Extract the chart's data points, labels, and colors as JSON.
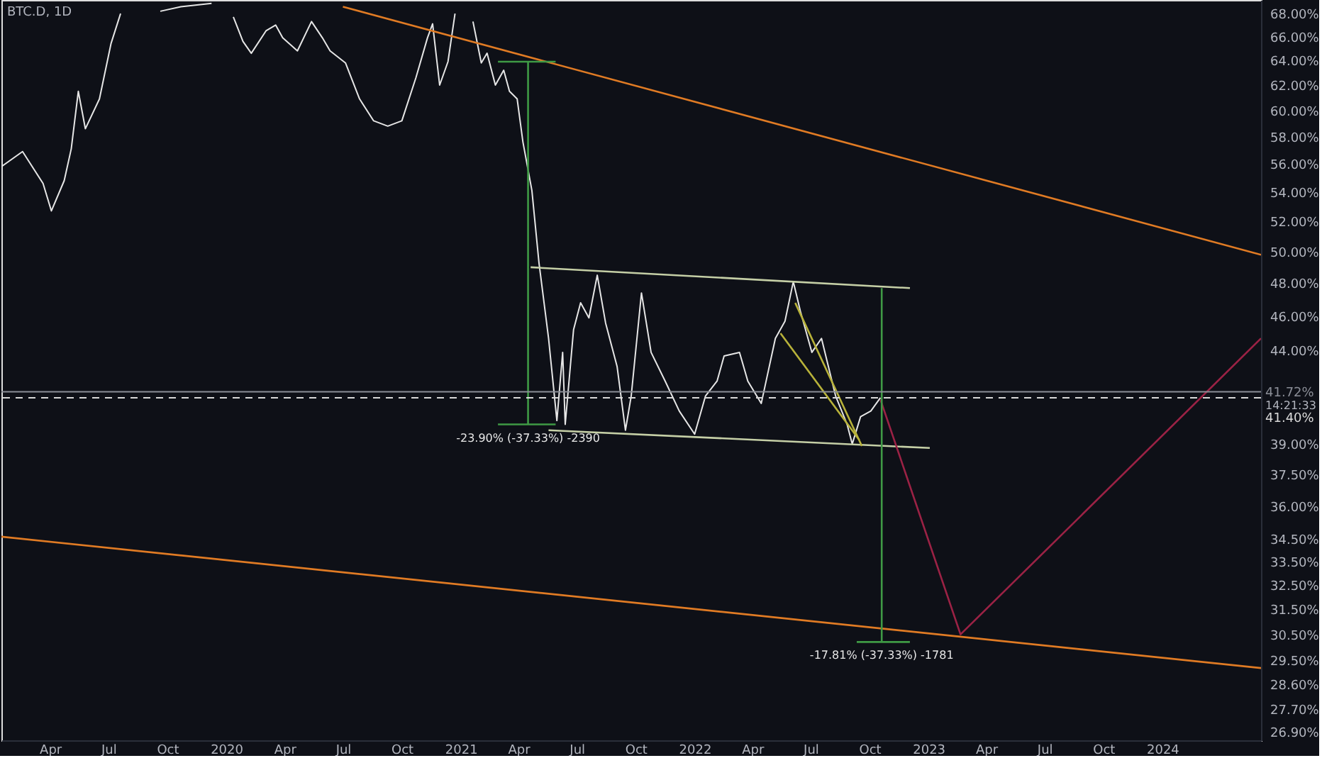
{
  "chart_data": {
    "type": "line",
    "title": "BTC.D, 1D",
    "xlim": [
      "2019-01-15",
      "2024-06-03"
    ],
    "xticks": [
      {
        "value": "2019-04-01",
        "label": "Apr"
      },
      {
        "value": "2019-07-01",
        "label": "Jul"
      },
      {
        "value": "2019-10-01",
        "label": "Oct"
      },
      {
        "value": "2020-01-01",
        "label": "2020"
      },
      {
        "value": "2020-04-01",
        "label": "Apr"
      },
      {
        "value": "2020-07-01",
        "label": "Jul"
      },
      {
        "value": "2020-10-01",
        "label": "Oct"
      },
      {
        "value": "2021-01-01",
        "label": "2021"
      },
      {
        "value": "2021-04-01",
        "label": "Apr"
      },
      {
        "value": "2021-07-01",
        "label": "Jul"
      },
      {
        "value": "2021-10-01",
        "label": "Oct"
      },
      {
        "value": "2022-01-01",
        "label": "2022"
      },
      {
        "value": "2022-04-01",
        "label": "Apr"
      },
      {
        "value": "2022-07-01",
        "label": "Jul"
      },
      {
        "value": "2022-10-01",
        "label": "Oct"
      },
      {
        "value": "2023-01-01",
        "label": "2023"
      },
      {
        "value": "2023-04-01",
        "label": "Apr"
      },
      {
        "value": "2023-07-01",
        "label": "Jul"
      },
      {
        "value": "2023-10-01",
        "label": "Oct"
      },
      {
        "value": "2024-01-01",
        "label": "2024"
      }
    ],
    "ylim": [
      26.6,
      69.2
    ],
    "log": true,
    "yticks": [
      {
        "value": 68,
        "label": "68.00%"
      },
      {
        "value": 66,
        "label": "66.00%"
      },
      {
        "value": 64,
        "label": "64.00%"
      },
      {
        "value": 62,
        "label": "62.00%"
      },
      {
        "value": 60,
        "label": "60.00%"
      },
      {
        "value": 58,
        "label": "58.00%"
      },
      {
        "value": 56,
        "label": "56.00%"
      },
      {
        "value": 54,
        "label": "54.00%"
      },
      {
        "value": 52,
        "label": "52.00%"
      },
      {
        "value": 50,
        "label": "50.00%"
      },
      {
        "value": 48,
        "label": "48.00%"
      },
      {
        "value": 46,
        "label": "46.00%"
      },
      {
        "value": 44,
        "label": "44.00%"
      },
      {
        "value": 39,
        "label": "39.00%"
      },
      {
        "value": 37.5,
        "label": "37.50%"
      },
      {
        "value": 36,
        "label": "36.00%"
      },
      {
        "value": 34.5,
        "label": "34.50%"
      },
      {
        "value": 33.5,
        "label": "33.50%"
      },
      {
        "value": 32.5,
        "label": "32.50%"
      },
      {
        "value": 31.5,
        "label": "31.50%"
      },
      {
        "value": 30.5,
        "label": "30.50%"
      },
      {
        "value": 29.5,
        "label": "29.50%"
      },
      {
        "value": 28.6,
        "label": "28.60%"
      },
      {
        "value": 27.7,
        "label": "27.70%"
      },
      {
        "value": 26.9,
        "label": "26.90%"
      }
    ],
    "grid": false,
    "legend": false,
    "marker": "none",
    "line_style": "solid",
    "series": [
      {
        "color": "#e6e6e6",
        "x": [
          "2019-01-15",
          "2019-02-17",
          "2019-03-21",
          "2019-04-03",
          "2019-04-23",
          "2019-05-04",
          "2019-05-15",
          "2019-05-26",
          "2019-06-17",
          "2019-07-05",
          "2019-07-20",
          "2019-07-27",
          "2019-09-20",
          "2019-10-22",
          "2019-12-09",
          "2020-01-01",
          "2020-01-12",
          "2020-01-27",
          "2020-02-09",
          "2020-03-03",
          "2020-03-18",
          "2020-03-29",
          "2020-04-21",
          "2020-05-13",
          "2020-05-30",
          "2020-06-11",
          "2020-07-05",
          "2020-07-27",
          "2020-08-18",
          "2020-09-09",
          "2020-10-01",
          "2020-10-23",
          "2020-11-10",
          "2020-11-18",
          "2020-11-29",
          "2020-12-12",
          "2020-12-23",
          "2021-01-01",
          "2021-01-12",
          "2021-01-20",
          "2021-02-02",
          "2021-02-11",
          "2021-02-24",
          "2021-03-09",
          "2021-03-18",
          "2021-03-30",
          "2021-04-08",
          "2021-04-22",
          "2021-05-03",
          "2021-05-18",
          "2021-05-31",
          "2021-06-09",
          "2021-06-13",
          "2021-06-26",
          "2021-07-07",
          "2021-07-20",
          "2021-08-02",
          "2021-08-15",
          "2021-09-02",
          "2021-09-15",
          "2021-09-24",
          "2021-10-10",
          "2021-10-25",
          "2021-11-16",
          "2021-12-08",
          "2022-01-01",
          "2022-01-18",
          "2022-02-05",
          "2022-02-16",
          "2022-03-12",
          "2022-03-25",
          "2022-04-15",
          "2022-05-07",
          "2022-05-22",
          "2022-06-04",
          "2022-06-15",
          "2022-07-03",
          "2022-07-18",
          "2022-08-09",
          "2022-08-27",
          "2022-09-04",
          "2022-09-17",
          "2022-10-03",
          "2022-10-18"
        ],
        "values": [
          55.8,
          56.9,
          54.6,
          52.7,
          54.8,
          57.1,
          61.5,
          58.6,
          60.9,
          65.4,
          68,
          null,
          68.2,
          68.6,
          68.9,
          null,
          67.7,
          65.6,
          64.6,
          66.5,
          67,
          65.9,
          64.8,
          67.3,
          65.9,
          64.8,
          63.8,
          60.9,
          59.2,
          58.8,
          59.2,
          62.6,
          65.9,
          67.1,
          62,
          63.9,
          68,
          null,
          null,
          67.3,
          63.8,
          64.6,
          62,
          63.2,
          61.5,
          60.9,
          57.6,
          54.1,
          49.3,
          44.7,
          40.2,
          43.9,
          40,
          45.2,
          46.8,
          45.9,
          48.5,
          45.6,
          43.1,
          39.7,
          41.5,
          47.4,
          43.9,
          42.3,
          40.7,
          39.5,
          41.5,
          42.3,
          43.7,
          43.9,
          42.3,
          41.1,
          44.7,
          45.7,
          48.1,
          46.3,
          43.9,
          44.7,
          41.5,
          40,
          39,
          40.4,
          40.7,
          41.4
        ]
      },
      {
        "type": "line",
        "color": "#e07b24",
        "x": [
          "2020-07-01",
          "2024-06-03"
        ],
        "values": [
          68.6,
          49.8
        ]
      },
      {
        "type": "line",
        "color": "#e07b24",
        "x": [
          "2019-01-15",
          "2024-06-03"
        ],
        "values": [
          34.6,
          29.2
        ]
      },
      {
        "type": "line",
        "color": "#c5cfa6",
        "x": [
          "2021-04-20",
          "2022-12-03"
        ],
        "values": [
          49,
          47.7
        ]
      },
      {
        "type": "line",
        "color": "#c5cfa6",
        "x": [
          "2021-05-18",
          "2023-01-03"
        ],
        "values": [
          39.7,
          38.8
        ]
      },
      {
        "type": "line",
        "color": "#b8b23a",
        "x": [
          "2022-06-07",
          "2022-09-19"
        ],
        "values": [
          46.8,
          38.9
        ]
      },
      {
        "type": "line",
        "color": "#b8b23a",
        "x": [
          "2022-05-15",
          "2022-09-15"
        ],
        "values": [
          45,
          39.2
        ]
      },
      {
        "type": "line",
        "color": "#9b2245",
        "x": [
          "2022-10-18",
          "2023-02-20",
          "2024-06-03"
        ],
        "values": [
          41.3,
          30.5,
          44.7
        ]
      },
      {
        "type": "line",
        "color": "#3f9a45",
        "x": [
          "2021-04-16",
          "2021-04-16"
        ],
        "values": [
          63.9,
          40
        ]
      },
      {
        "type": "line",
        "color": "#3f9a45",
        "x": [
          "2021-02-28",
          "2021-05-29"
        ],
        "values": [
          63.9,
          63.9
        ]
      },
      {
        "type": "line",
        "color": "#3f9a45",
        "x": [
          "2021-02-28",
          "2021-05-29"
        ],
        "values": [
          40,
          40
        ]
      },
      {
        "type": "line",
        "color": "#3f9a45",
        "x": [
          "2022-10-20",
          "2022-10-20"
        ],
        "values": [
          47.7,
          30.2
        ]
      },
      {
        "type": "line",
        "color": "#3f9a45",
        "x": [
          "2022-09-11",
          "2022-12-03"
        ],
        "values": [
          30.2,
          30.2
        ]
      }
    ],
    "ref_lines": [
      {
        "axis": "y",
        "value": 41.72,
        "label": "41.72%",
        "color": "#8a8d96",
        "line_style": "solid"
      },
      {
        "axis": "y",
        "value": 41.4,
        "label": "41.40%",
        "color": "#d8d8d8",
        "line_style": "dashed"
      }
    ],
    "annotations": [
      {
        "text": "-23.90% (-37.33%) -2390",
        "x": "2021-04-16",
        "y": 40
      },
      {
        "text": "-17.81% (-37.33%) -1781",
        "x": "2022-10-20",
        "y": 30.2
      },
      "14:21:33"
    ]
  }
}
